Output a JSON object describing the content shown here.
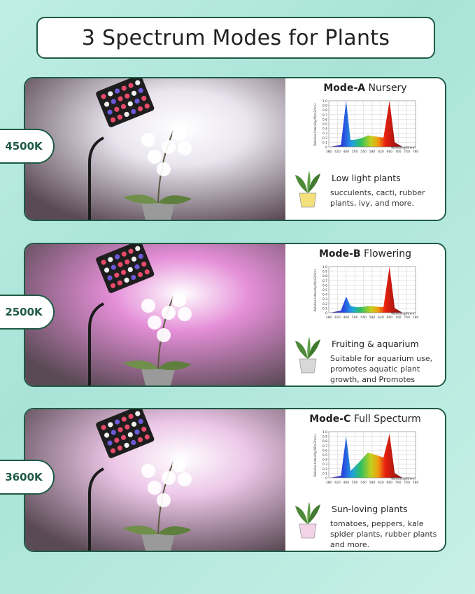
{
  "header": {
    "title": "3 Spectrum Modes for Plants"
  },
  "modes": [
    {
      "badge": "4500K",
      "mode_label": "Mode-A",
      "mode_name": "Nursery",
      "plant_title": "Low light plants",
      "plant_desc": "succulents, cacti, rubber plants, ivy, and more.",
      "wash_color": "#e9e5ef",
      "spectrum_peaks": {
        "blue": 1.0,
        "red": 1.0,
        "green": 0.25
      }
    },
    {
      "badge": "2500K",
      "mode_label": "Mode-B",
      "mode_name": "Flowering",
      "plant_title": "Fruiting & aquarium",
      "plant_desc": "Suitable for aquarium use, promotes aquatic plant growth, and Promotes flowering.",
      "wash_color": "#e58fd8",
      "spectrum_peaks": {
        "blue": 0.35,
        "red": 1.0,
        "green": 0.15
      }
    },
    {
      "badge": "3600K",
      "mode_label": "Mode-C",
      "mode_name": "Full Specturm",
      "plant_title": "Sun-loving plants",
      "plant_desc": "tomatoes, peppers, kale spider plants, rubber plants and more.",
      "wash_color": "#ecc6e7",
      "spectrum_peaks": {
        "blue": 0.9,
        "red": 0.95,
        "green": 0.55
      }
    }
  ],
  "chart": {
    "ylabel": "Relative Intensity(W/m2/nm)",
    "xlabel": "Wavelength(nm)",
    "yticks": [
      "1.0",
      "0.9",
      "0.8",
      "0.7",
      "0.6",
      "0.5",
      "0.4",
      "0.3",
      "0.2",
      "0.1",
      "0"
    ],
    "xticks": [
      "380",
      "420",
      "460",
      "500",
      "540",
      "580",
      "620",
      "660",
      "700",
      "740",
      "780"
    ]
  }
}
